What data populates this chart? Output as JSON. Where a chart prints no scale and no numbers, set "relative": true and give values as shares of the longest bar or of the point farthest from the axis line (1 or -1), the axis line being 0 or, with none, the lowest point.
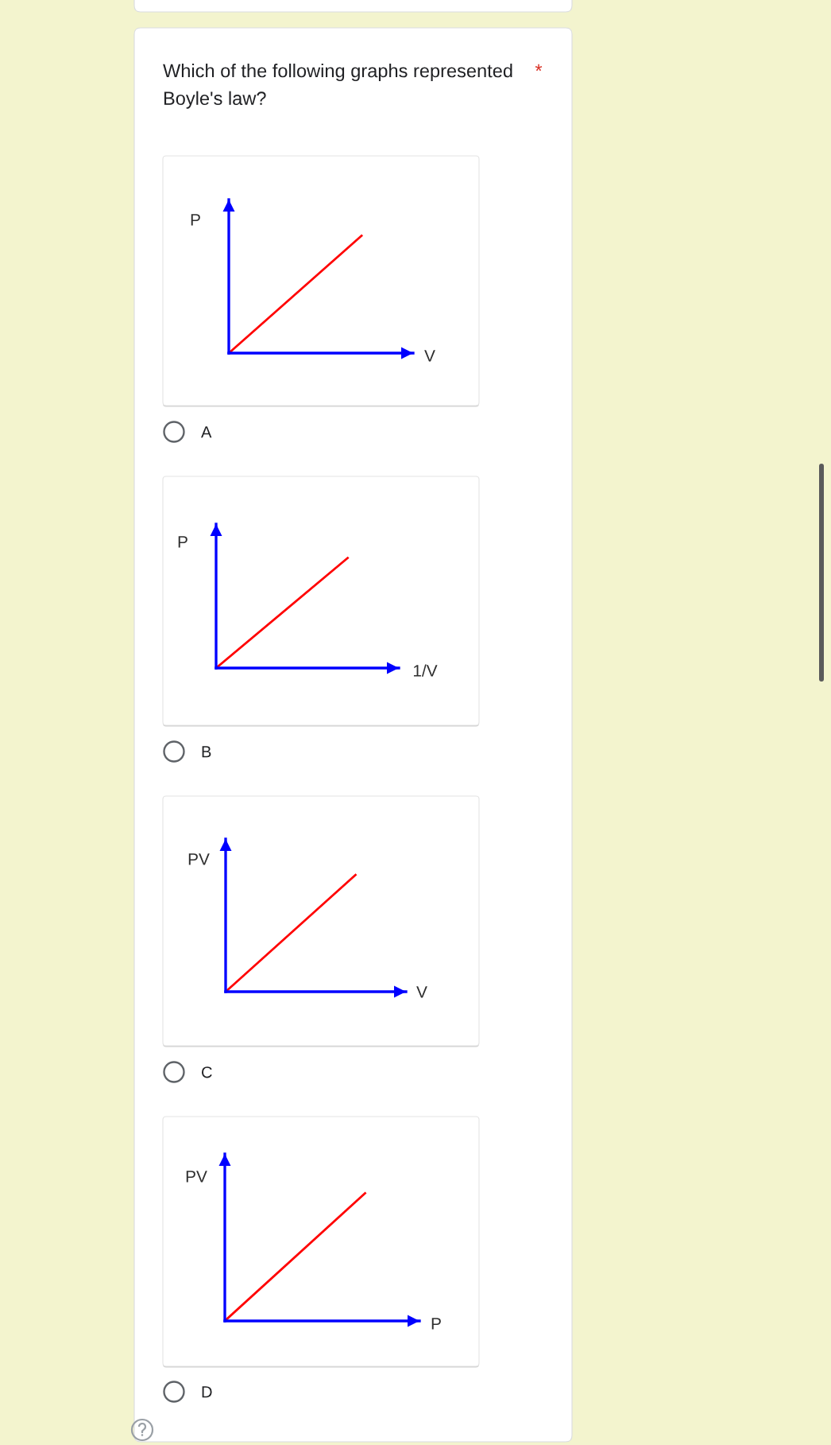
{
  "chart_data": [
    {
      "type": "line",
      "title": "Which of the following graphs represented Boyle's law?",
      "xlabel": "V",
      "ylabel": "P",
      "categories": [
        null,
        null
      ],
      "relative": true,
      "tick_labels": false,
      "series": [
        {
          "color": "#ff0000",
          "values": [
            0,
            1
          ]
        }
      ],
      "annotations": [
        "*",
        "A"
      ]
    },
    {
      "type": "line",
      "xlabel": "1/V",
      "ylabel": "P",
      "categories": [
        null,
        null
      ],
      "relative": true,
      "tick_labels": false,
      "series": [
        {
          "color": "#ff0000",
          "values": [
            0,
            1
          ]
        }
      ],
      "annotations": [
        "B"
      ]
    },
    {
      "type": "line",
      "xlabel": "V",
      "ylabel": "PV",
      "categories": [
        null,
        null
      ],
      "relative": true,
      "tick_labels": false,
      "series": [
        {
          "color": "#ff0000",
          "values": [
            0,
            1
          ]
        }
      ],
      "annotations": [
        "C"
      ]
    },
    {
      "type": "line",
      "xlabel": "P",
      "ylabel": "PV",
      "categories": [
        null,
        null
      ],
      "relative": true,
      "tick_labels": false,
      "series": [
        {
          "color": "#ff0000",
          "values": [
            0,
            1
          ]
        }
      ],
      "annotations": [
        "D"
      ]
    }
  ]
}
